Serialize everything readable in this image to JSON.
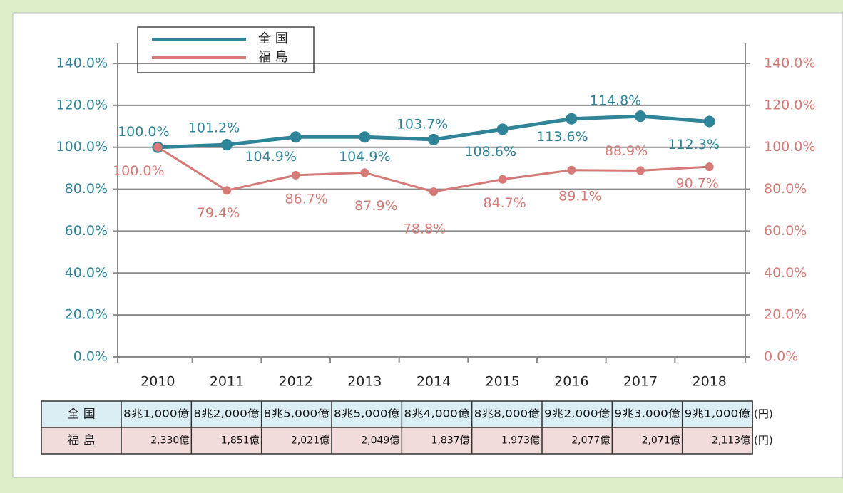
{
  "chart_data": {
    "type": "line",
    "categories": [
      "2010",
      "2011",
      "2012",
      "2013",
      "2014",
      "2015",
      "2016",
      "2017",
      "2018"
    ],
    "series": [
      {
        "name": "全 国",
        "color": "#2f8497",
        "values": [
          100.0,
          101.2,
          104.9,
          104.9,
          103.7,
          108.6,
          113.6,
          114.8,
          112.3
        ],
        "value_labels": [
          "100.0%",
          "101.2%",
          "104.9%",
          "104.9%",
          "103.7%",
          "108.6%",
          "113.6%",
          "114.8%",
          "112.3%"
        ]
      },
      {
        "name": "福 島",
        "color": "#d67a78",
        "axis": "y2",
        "values": [
          100.0,
          79.4,
          86.7,
          87.9,
          78.8,
          84.7,
          89.1,
          88.9,
          90.7
        ],
        "value_labels": [
          "100.0%",
          "79.4%",
          "86.7%",
          "87.9%",
          "78.8%",
          "84.7%",
          "89.1%",
          "88.9%",
          "90.7%"
        ]
      }
    ],
    "ylim": [
      0,
      140
    ],
    "yticks": [
      {
        "value": 0,
        "label": "0.0%"
      },
      {
        "value": 20,
        "label": "20.0%"
      },
      {
        "value": 40,
        "label": "40.0%"
      },
      {
        "value": 60,
        "label": "60.0%"
      },
      {
        "value": 80,
        "label": "80.0%"
      },
      {
        "value": 100,
        "label": "100.0%"
      },
      {
        "value": 120,
        "label": "120.0%"
      },
      {
        "value": 140,
        "label": "140.0%"
      }
    ],
    "y2lim": [
      0,
      140
    ],
    "y2ticks": [
      {
        "value": 0,
        "label": "0.0%"
      },
      {
        "value": 20,
        "label": "20.0%"
      },
      {
        "value": 40,
        "label": "40.0%"
      },
      {
        "value": 60,
        "label": "60.0%"
      },
      {
        "value": 80,
        "label": "80.0%"
      },
      {
        "value": 100,
        "label": "100.0%"
      },
      {
        "value": 120,
        "label": "120.0%"
      },
      {
        "value": 140,
        "label": "140.0%"
      }
    ],
    "grid": true,
    "legend": "top-left",
    "table": {
      "rows": [
        {
          "cells": [
            "8兆1,000億",
            "8兆2,000億",
            "8兆5,000億",
            "8兆5,000億",
            "8兆4,000億",
            "8兆8,000億",
            "9兆2,000億",
            "9兆3,000億",
            "9兆1,000億"
          ],
          "unit": "(円)"
        },
        {
          "cells": [
            "2,330億",
            "1,851億",
            "2,021億",
            "2,049億",
            "1,837億",
            "1,973億",
            "2,077億",
            "2,071億",
            "2,113億"
          ],
          "unit": "(円)"
        }
      ]
    }
  }
}
